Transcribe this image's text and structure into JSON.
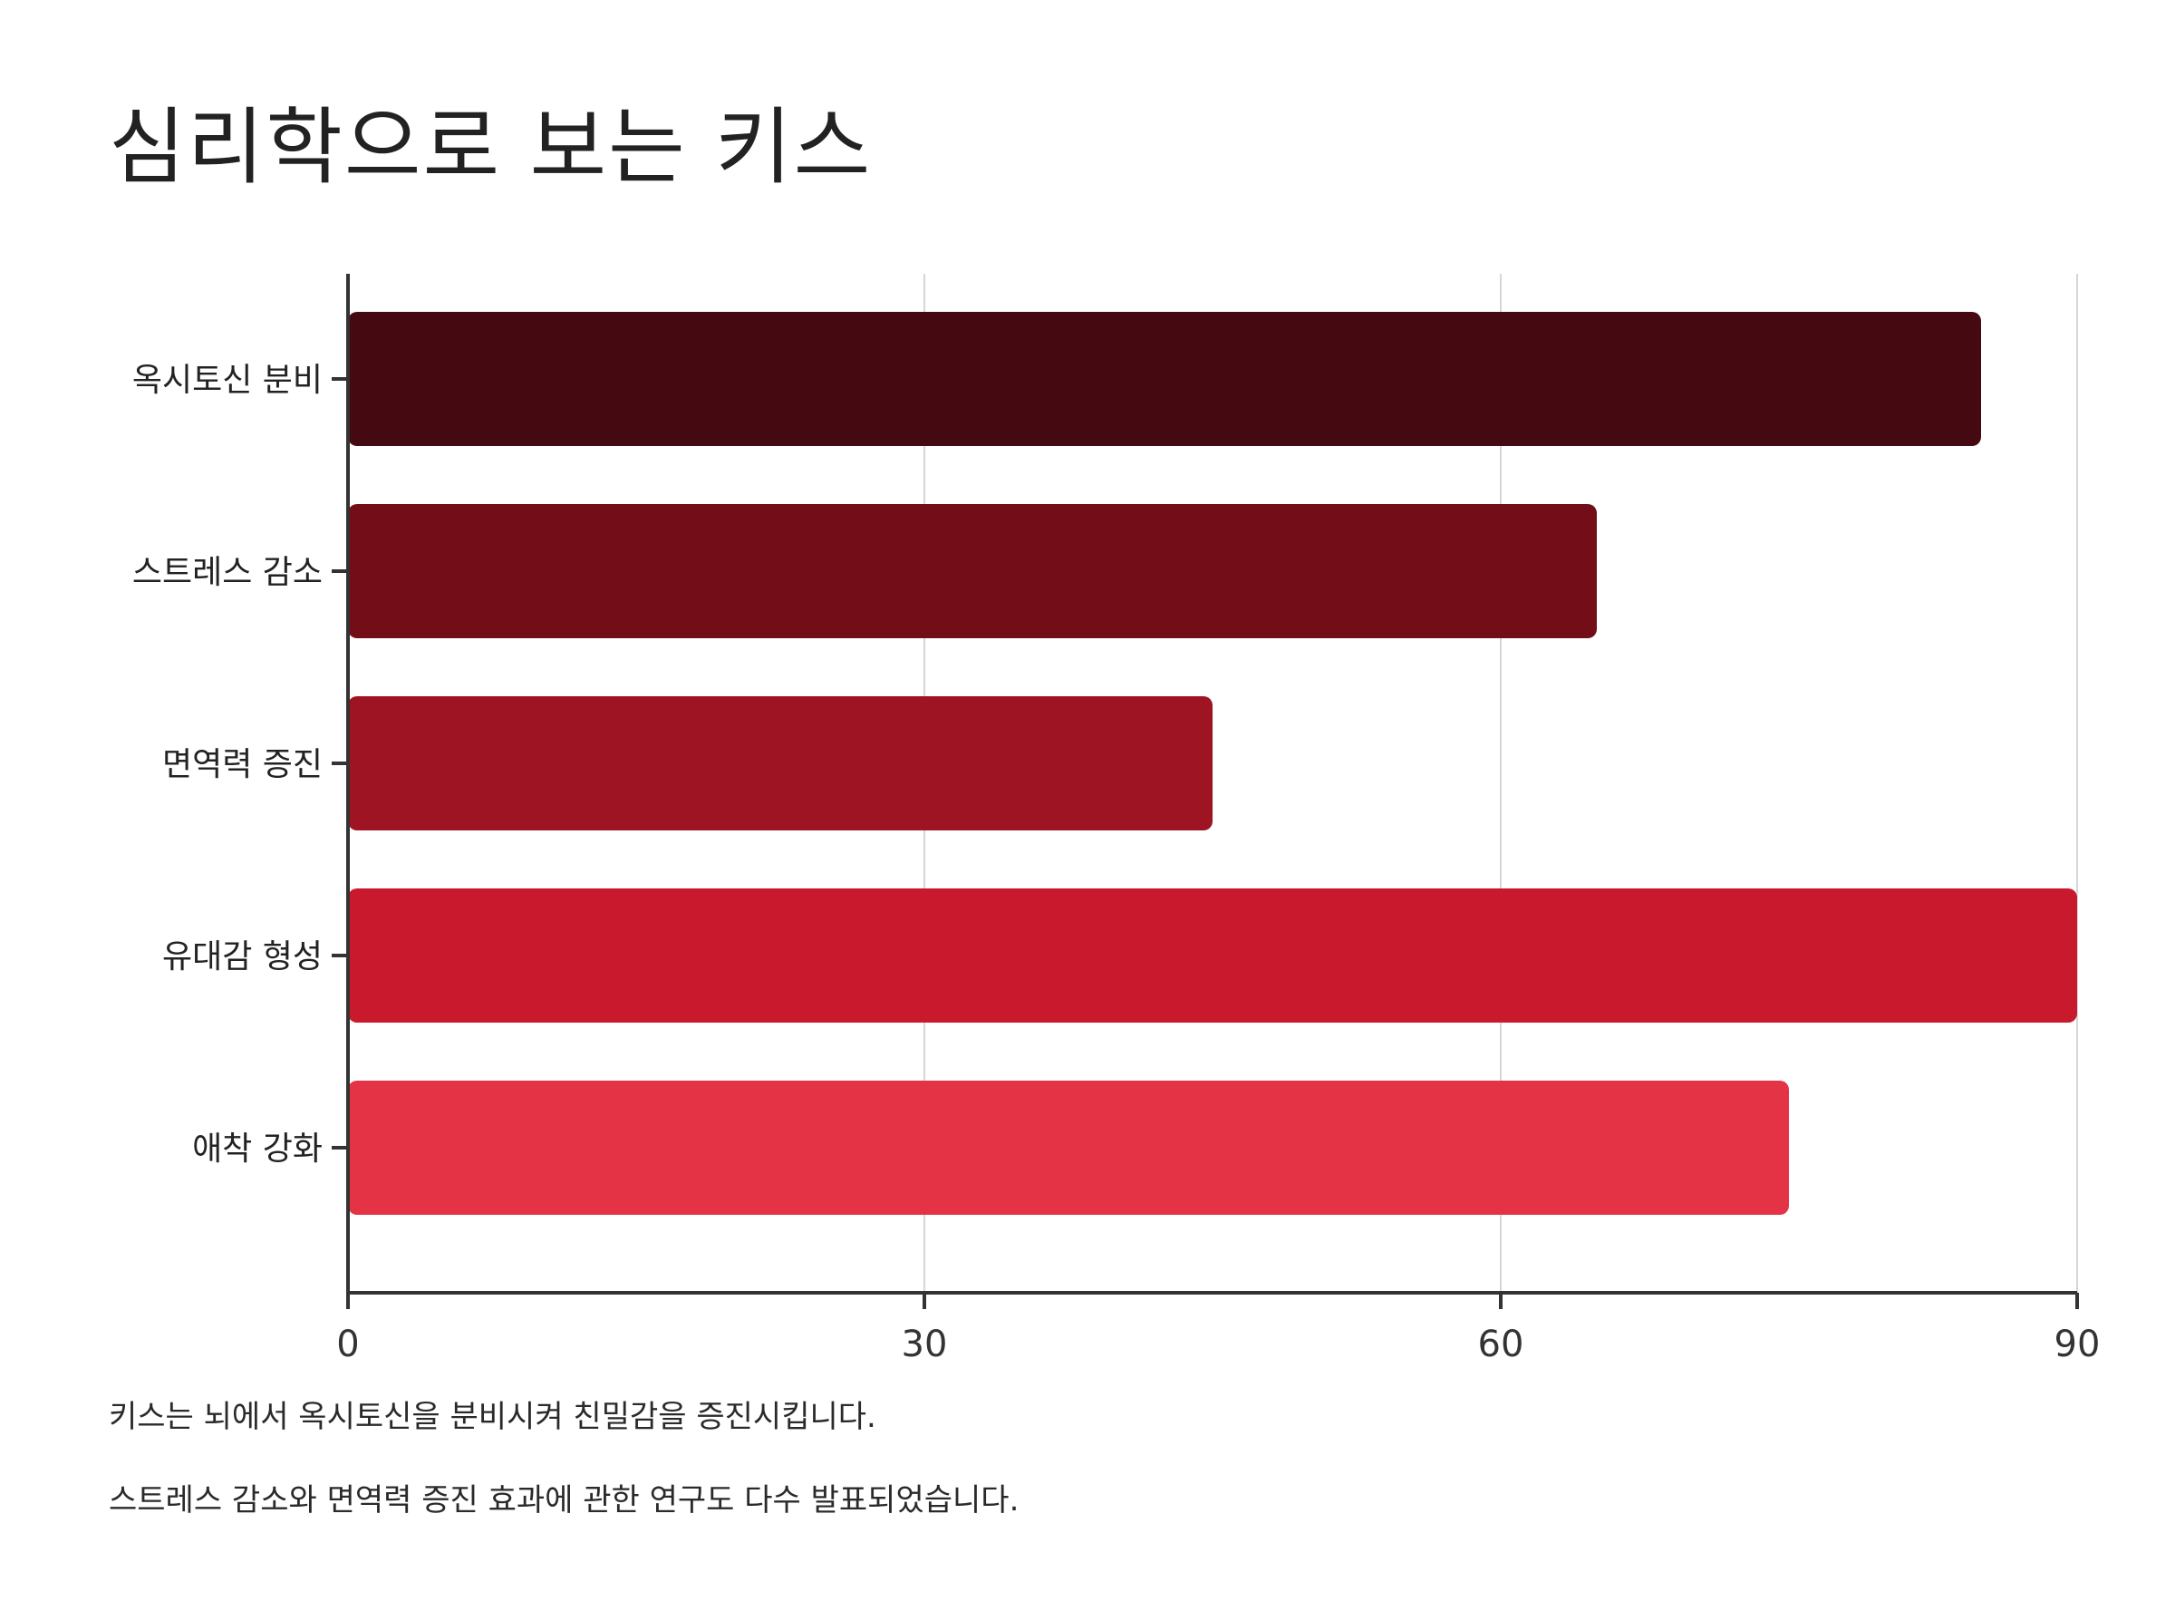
{
  "title": "심리학으로 보는 키스",
  "chart_data": {
    "type": "bar",
    "orientation": "horizontal",
    "categories": [
      "옥시토신 분비",
      "스트레스 감소",
      "면역력 증진",
      "유대감 형성",
      "애착 강화"
    ],
    "values": [
      85,
      65,
      45,
      90,
      75
    ],
    "colors": [
      "#450a11",
      "#730e19",
      "#9e1423",
      "#c8192d",
      "#e33345"
    ],
    "xlim": [
      0,
      90
    ],
    "xticks": [
      0,
      30,
      60,
      90
    ],
    "grid": true,
    "xlabel": "",
    "ylabel": ""
  },
  "notes": [
    "키스는 뇌에서 옥시토신을 분비시켜 친밀감을 증진시킵니다.",
    "스트레스 감소와 면역력 증진 효과에 관한 연구도 다수 발표되었습니다."
  ]
}
